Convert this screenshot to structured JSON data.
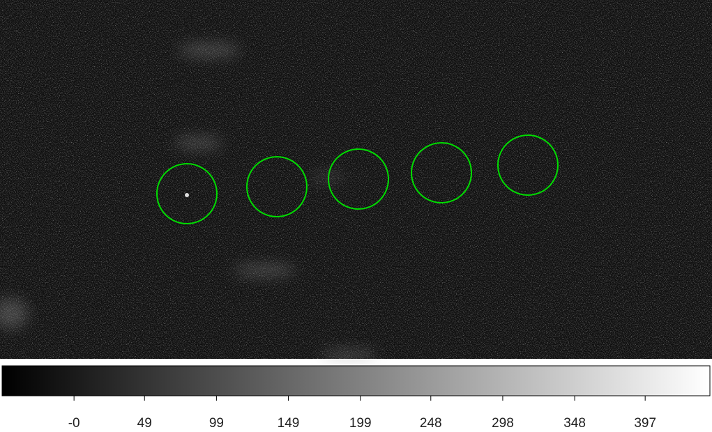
{
  "colorbar": {
    "range": [
      -50,
      442
    ],
    "ticks": [
      {
        "value": 0,
        "label": "-0"
      },
      49,
      99,
      149,
      199,
      248,
      298,
      348,
      397
    ]
  }
}
